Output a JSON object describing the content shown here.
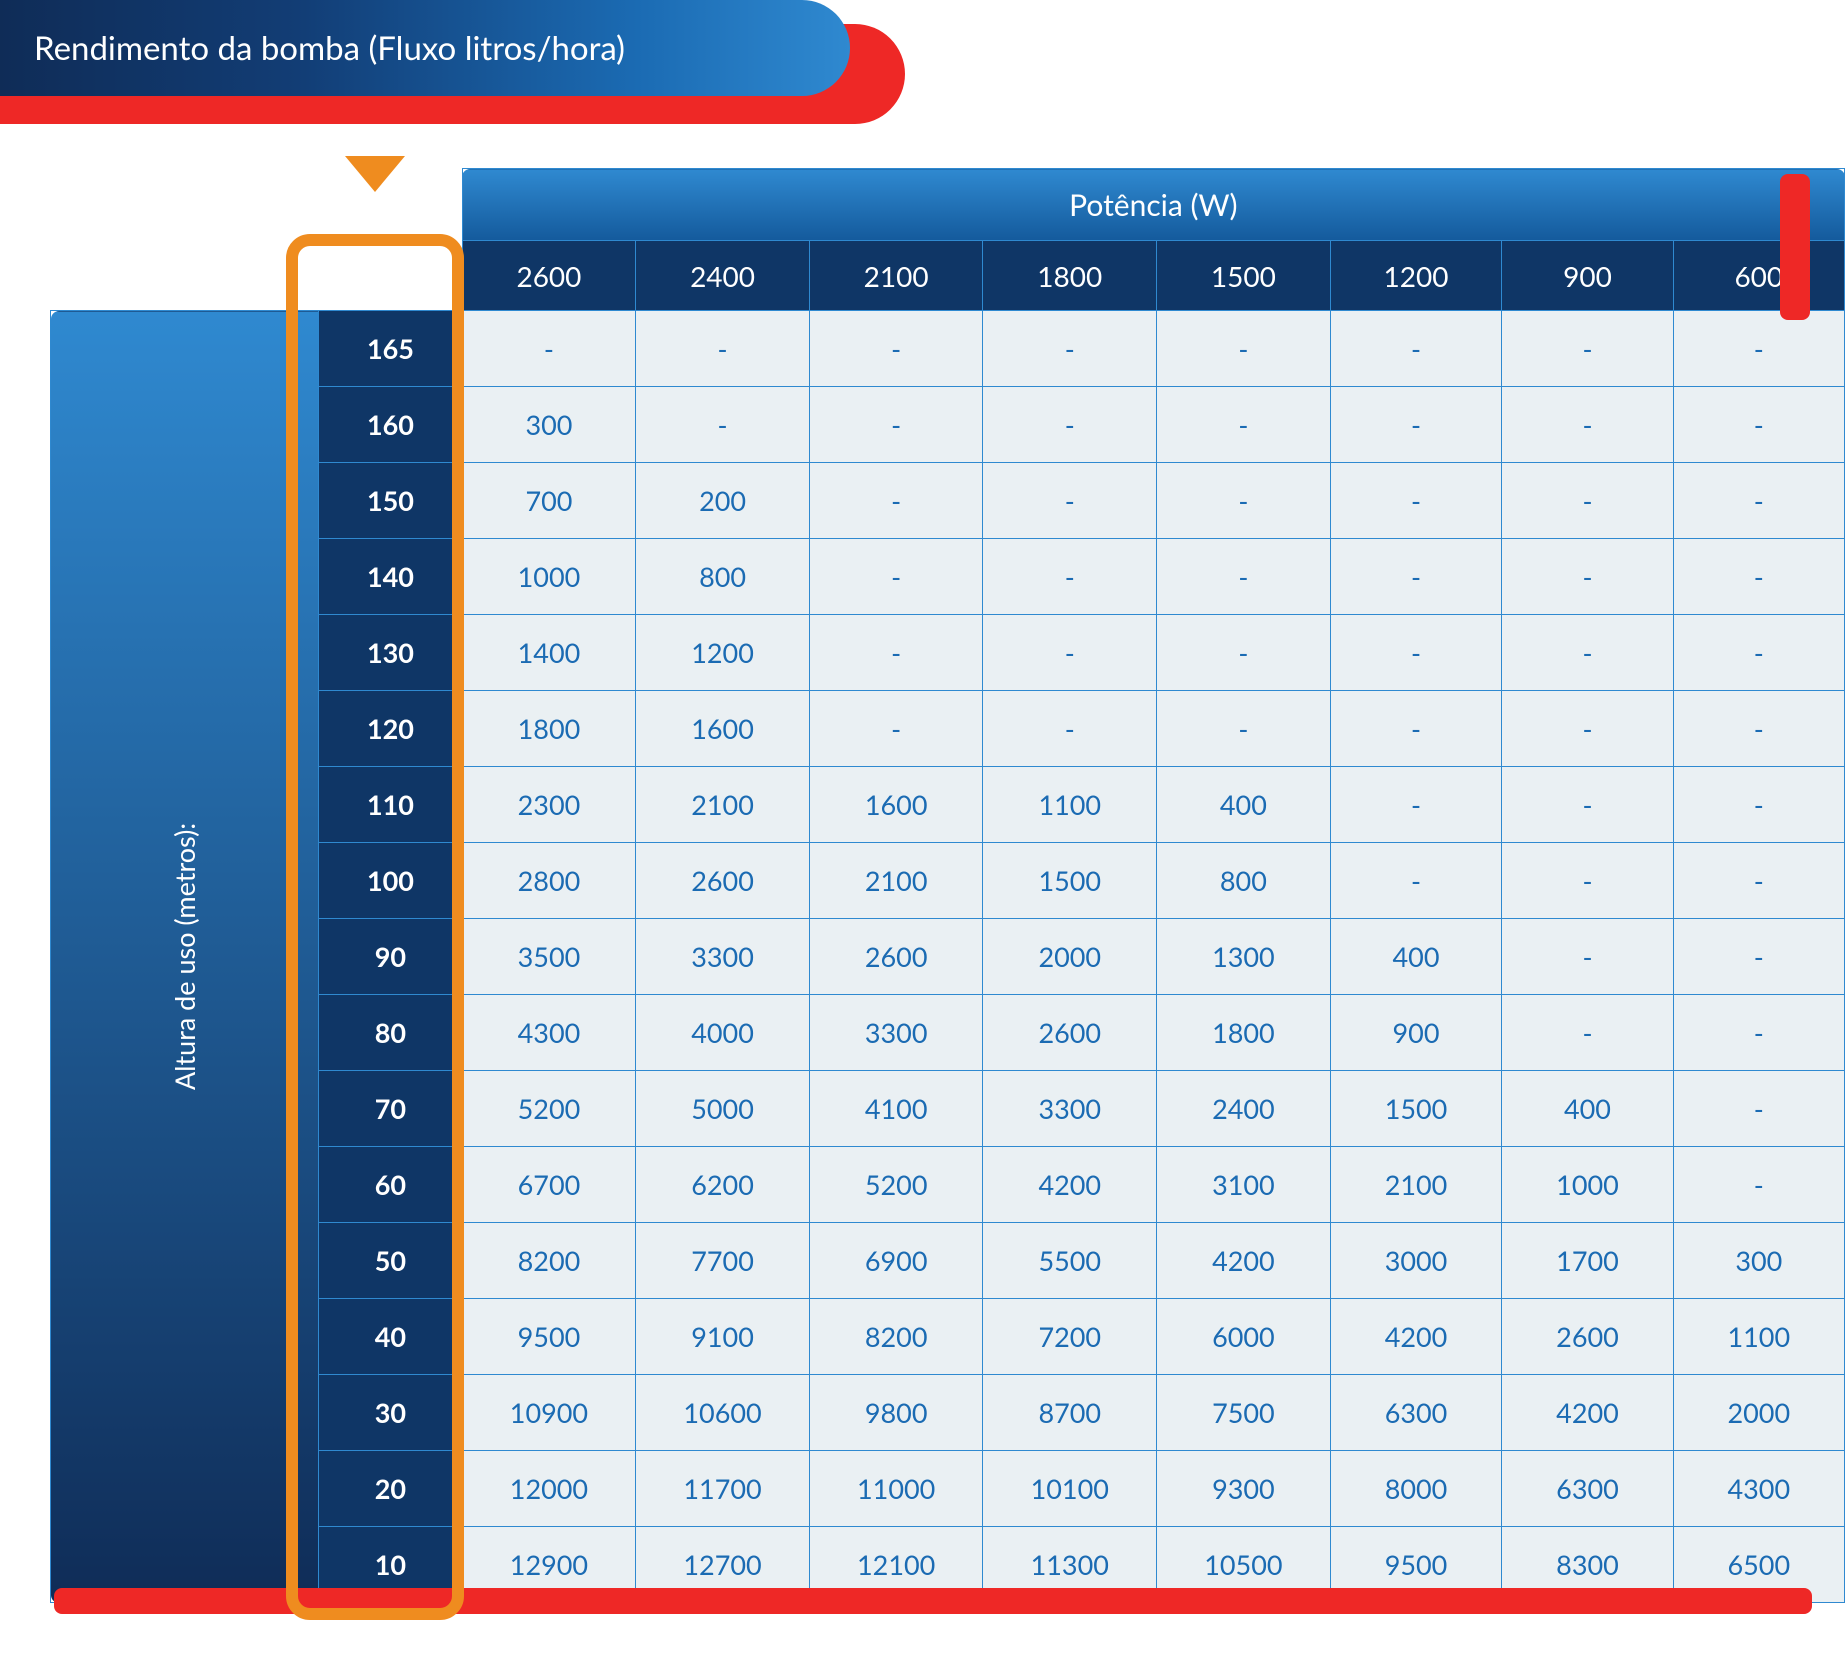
{
  "title": "Rendimento da bomba (Fluxo litros/hora)",
  "columns_label": "Potência (W)",
  "rows_label": "Altura de uso (metros):",
  "power_columns": [
    "2600",
    "2400",
    "2100",
    "1800",
    "1500",
    "1200",
    "900",
    "600"
  ],
  "height_rows": [
    "165",
    "160",
    "150",
    "140",
    "130",
    "120",
    "110",
    "100",
    "90",
    "80",
    "70",
    "60",
    "50",
    "40",
    "30",
    "20",
    "10"
  ],
  "cells": [
    [
      "-",
      "-",
      "-",
      "-",
      "-",
      "-",
      "-",
      "-"
    ],
    [
      "300",
      "-",
      "-",
      "-",
      "-",
      "-",
      "-",
      "-"
    ],
    [
      "700",
      "200",
      "-",
      "-",
      "-",
      "-",
      "-",
      "-"
    ],
    [
      "1000",
      "800",
      "-",
      "-",
      "-",
      "-",
      "-",
      "-"
    ],
    [
      "1400",
      "1200",
      "-",
      "-",
      "-",
      "-",
      "-",
      "-"
    ],
    [
      "1800",
      "1600",
      "-",
      "-",
      "-",
      "-",
      "-",
      "-"
    ],
    [
      "2300",
      "2100",
      "1600",
      "1100",
      "400",
      "-",
      "-",
      "-"
    ],
    [
      "2800",
      "2600",
      "2100",
      "1500",
      "800",
      "-",
      "-",
      "-"
    ],
    [
      "3500",
      "3300",
      "2600",
      "2000",
      "1300",
      "400",
      "-",
      "-"
    ],
    [
      "4300",
      "4000",
      "3300",
      "2600",
      "1800",
      "900",
      "-",
      "-"
    ],
    [
      "5200",
      "5000",
      "4100",
      "3300",
      "2400",
      "1500",
      "400",
      "-"
    ],
    [
      "6700",
      "6200",
      "5200",
      "4200",
      "3100",
      "2100",
      "1000",
      "-"
    ],
    [
      "8200",
      "7700",
      "6900",
      "5500",
      "4200",
      "3000",
      "1700",
      "300"
    ],
    [
      "9500",
      "9100",
      "8200",
      "7200",
      "6000",
      "4200",
      "2600",
      "1100"
    ],
    [
      "10900",
      "10600",
      "9800",
      "8700",
      "7500",
      "6300",
      "4200",
      "2000"
    ],
    [
      "12000",
      "11700",
      "11000",
      "10100",
      "9300",
      "8000",
      "6300",
      "4300"
    ],
    [
      "12900",
      "12700",
      "12100",
      "11300",
      "10500",
      "9500",
      "8300",
      "6500"
    ]
  ],
  "highlight_column_index": 0,
  "layout": {
    "side_label_w": 70,
    "row_label_w": 160,
    "data_col_w": 190,
    "header_top_h": 72,
    "header_sub_h": 70,
    "data_row_h": 76
  },
  "colors": {
    "title_grad_from": "#0f2c57",
    "title_grad_to": "#2f89d0",
    "accent_red": "#ee2826",
    "accent_orange": "#ef8c1f",
    "header_grad_from": "#2f89d0",
    "header_grad_to": "#145a9c",
    "header_sub_bg": "#0f3666",
    "row_label_bg": "#0f3666",
    "cell_bg": "#eaf0f3",
    "cell_text": "#1b6bb3",
    "cell_border": "#2f89d0",
    "white": "#ffffff"
  },
  "fonts": {
    "title_pt": 33,
    "header_pt": 30,
    "subheader_pt": 28,
    "row_label_pt": 27,
    "cell_pt": 27,
    "side_label_pt": 27
  }
}
